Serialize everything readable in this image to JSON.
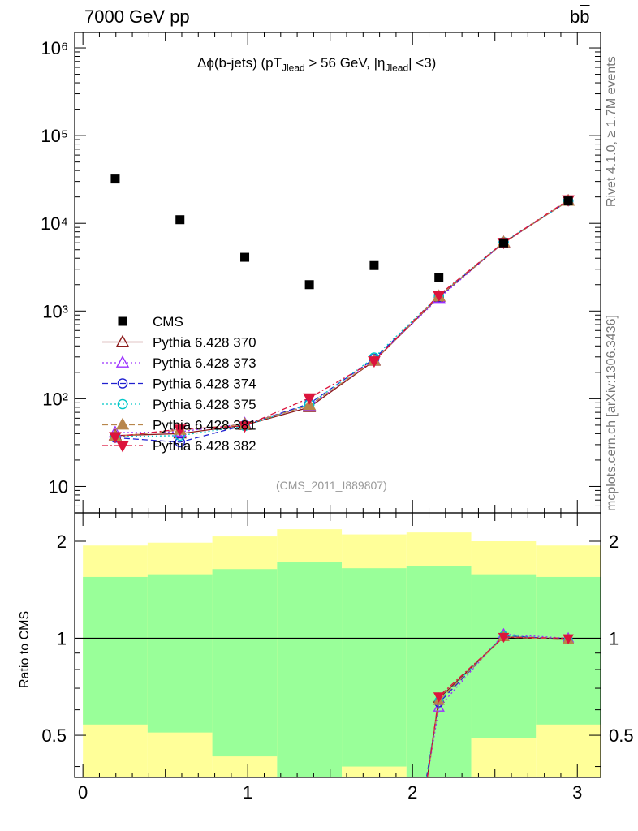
{
  "header": {
    "energy_label": "7000 GeV pp",
    "process_main": "b",
    "process_bar": "b"
  },
  "side_text": {
    "rivet": "Rivet 4.1.0, ≥ 1.7M events",
    "source": "mcplots.cern.ch [arXiv:1306.3436]"
  },
  "chart_data": [
    {
      "type": "scatter",
      "panel": "main",
      "title": {
        "pre": "Δϕ(b-jets) (pT",
        "sub1": "Jlead",
        "mid": " >  56 GeV, |η",
        "sub2": "Jlead",
        "post": "| <3)"
      },
      "ref_note": "(CMS_2011_I889807)",
      "y_scale": "log",
      "ylim": [
        5,
        1500000
      ],
      "xlim": [
        -0.05,
        3.1416
      ],
      "y_tick_labels": [
        "10",
        "10²",
        "10³",
        "10⁴",
        "10⁵",
        "10⁶"
      ],
      "x_bin_edges": [
        0,
        0.3927,
        0.7854,
        1.1781,
        1.5708,
        1.9635,
        2.3562,
        2.7489,
        3.1416
      ],
      "data": {
        "name": "CMS",
        "x": [
          0.196,
          0.589,
          0.982,
          1.374,
          1.767,
          2.16,
          2.553,
          2.945
        ],
        "y": [
          32000,
          11000,
          4100,
          2000,
          3300,
          2400,
          6000,
          18000
        ]
      },
      "series": [
        {
          "name": "Pythia 6.428 370",
          "color": "#8b1a1a",
          "marker": "triangle-open",
          "dash": "solid",
          "x": [
            0.196,
            0.589,
            0.982,
            1.374,
            1.767,
            2.16,
            2.553,
            2.945
          ],
          "y": [
            38,
            40,
            50,
            80,
            270,
            1450,
            6000,
            18000
          ]
        },
        {
          "name": "Pythia 6.428 373",
          "color": "#9b30ff",
          "marker": "triangle-open",
          "dash": "dotted",
          "x": [
            0.196,
            0.589,
            0.982,
            1.374,
            1.767,
            2.16,
            2.553,
            2.945
          ],
          "y": [
            41,
            42,
            52,
            83,
            275,
            1400,
            6050,
            18000
          ]
        },
        {
          "name": "Pythia 6.428 374",
          "color": "#2020d0",
          "marker": "circle-open",
          "dash": "dashed",
          "x": [
            0.196,
            0.589,
            0.982,
            1.374,
            1.767,
            2.16,
            2.553,
            2.945
          ],
          "y": [
            36,
            32,
            50,
            88,
            285,
            1450,
            6100,
            18000
          ]
        },
        {
          "name": "Pythia 6.428 375",
          "color": "#00c8c8",
          "marker": "circle-open",
          "dash": "dotted",
          "x": [
            0.196,
            0.589,
            0.982,
            1.374,
            1.767,
            2.16,
            2.553,
            2.945
          ],
          "y": [
            37,
            38,
            49,
            86,
            295,
            1500,
            6100,
            18000
          ]
        },
        {
          "name": "Pythia 6.428 381",
          "color": "#b8864b",
          "marker": "triangle-filled",
          "dash": "dashed",
          "x": [
            0.196,
            0.589,
            0.982,
            1.374,
            1.767,
            2.16,
            2.553,
            2.945
          ],
          "y": [
            37,
            44,
            51,
            84,
            272,
            1470,
            6050,
            18000
          ]
        },
        {
          "name": "Pythia 6.428 382",
          "color": "#dc143c",
          "marker": "triangle-down-filled",
          "dash": "dashdot",
          "x": [
            0.196,
            0.589,
            0.982,
            1.374,
            1.767,
            2.16,
            2.553,
            2.945
          ],
          "y": [
            37,
            45,
            49,
            102,
            270,
            1520,
            6050,
            18500
          ]
        }
      ]
    },
    {
      "type": "line",
      "panel": "ratio",
      "ylabel": "Ratio to CMS",
      "y_scale": "log",
      "ylim": [
        0.37,
        2.45
      ],
      "y_tick_labels": [
        "0.5",
        "1",
        "2"
      ],
      "x_tick_labels": [
        "0",
        "1",
        "2",
        "3"
      ],
      "reference_line": 1,
      "bands": {
        "outer_color": "#ffff99",
        "inner_color": "#99ff99",
        "x_bin_edges": [
          0,
          0.3927,
          0.7854,
          1.1781,
          1.5708,
          1.9635,
          2.3562,
          2.7489,
          3.1416
        ],
        "outer_hi": [
          1.94,
          1.98,
          2.07,
          2.18,
          2.1,
          2.13,
          2.0,
          1.94
        ],
        "inner_hi": [
          1.55,
          1.58,
          1.64,
          1.72,
          1.65,
          1.68,
          1.58,
          1.55
        ],
        "inner_lo": [
          0.54,
          0.51,
          0.43,
          0.35,
          0.4,
          0.37,
          0.49,
          0.54
        ]
      },
      "series": [
        {
          "name": "Pythia 6.428 370",
          "x": [
            2.16,
            2.553,
            2.945
          ],
          "y": [
            0.65,
            1.01,
            0.99
          ],
          "from_below_x": 2.09
        },
        {
          "name": "Pythia 6.428 373",
          "x": [
            2.16,
            2.553,
            2.945
          ],
          "y": [
            0.61,
            1.03,
            1.0
          ],
          "from_below_x": 2.09
        },
        {
          "name": "Pythia 6.428 374",
          "x": [
            2.16,
            2.553,
            2.945
          ],
          "y": [
            0.63,
            1.02,
            0.99
          ],
          "from_below_x": 2.085
        },
        {
          "name": "Pythia 6.428 375",
          "x": [
            2.16,
            2.553,
            2.945
          ],
          "y": [
            0.64,
            1.02,
            0.99
          ],
          "from_below_x": 2.085
        },
        {
          "name": "Pythia 6.428 381",
          "x": [
            2.16,
            2.553,
            2.945
          ],
          "y": [
            0.64,
            1.01,
            0.99
          ],
          "from_below_x": 2.09
        },
        {
          "name": "Pythia 6.428 382",
          "x": [
            2.16,
            2.553,
            2.945
          ],
          "y": [
            0.66,
            1.01,
            1.0
          ],
          "from_below_x": 2.09
        }
      ]
    }
  ]
}
